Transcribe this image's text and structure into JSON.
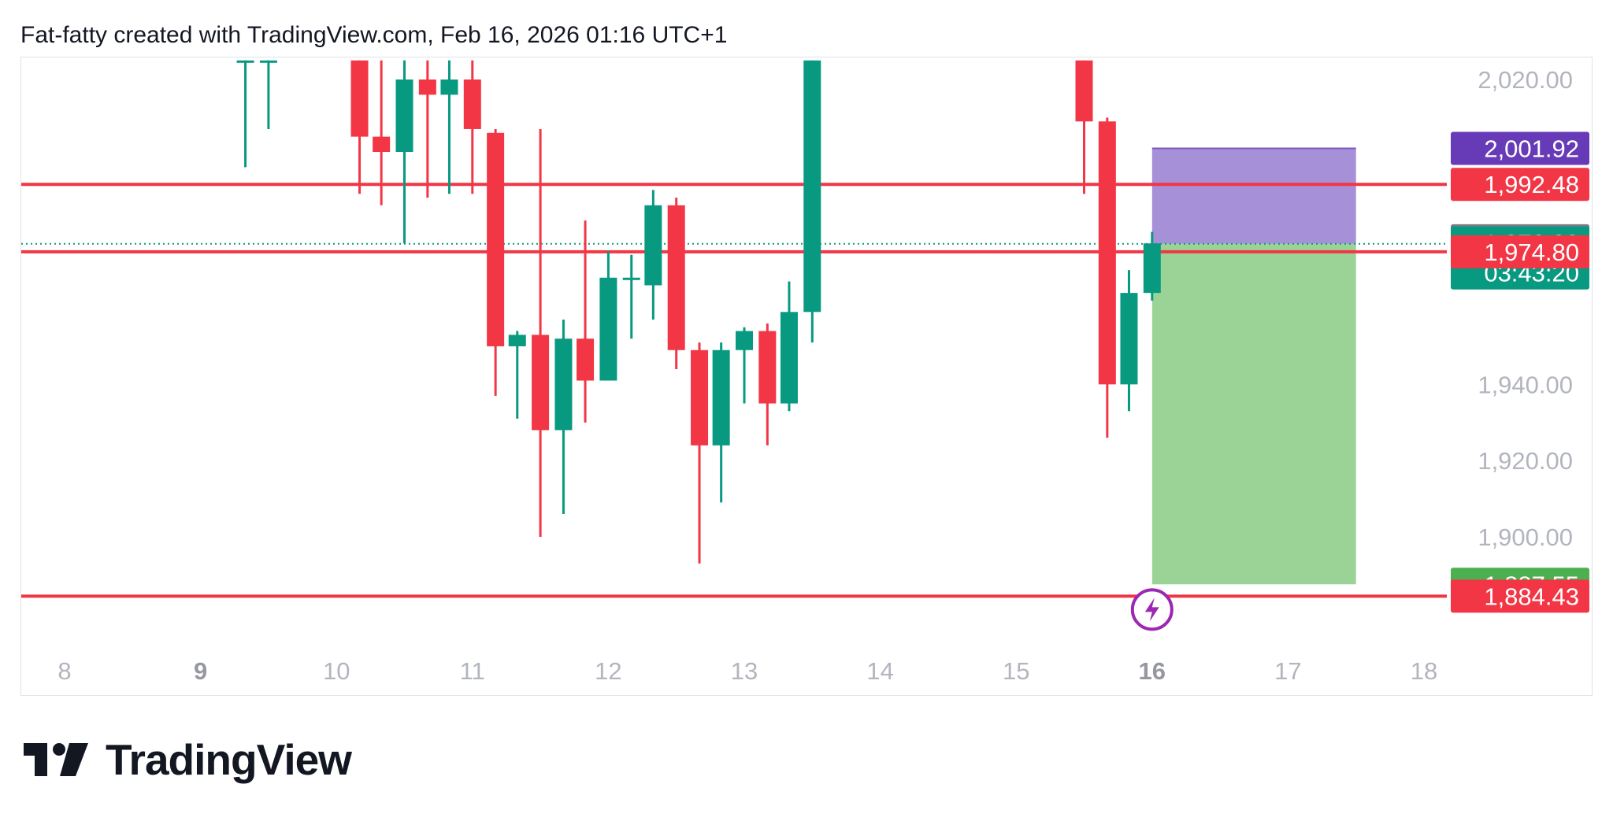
{
  "header": {
    "caption": "Fat-fatty created with TradingView.com, Feb 16, 2026 01:16 UTC+1"
  },
  "brand": {
    "name": "TradingView"
  },
  "colors": {
    "bull": "#089981",
    "bear": "#f23645",
    "level_line": "#f23645",
    "stop_zone": "#a18ad6",
    "target_zone": "#96d190",
    "last_price": "#089981",
    "stop_label": "#673ab7",
    "crosshair_label": "#787b86",
    "target_label": "#4caf50",
    "axis_text": "#b2b5be"
  },
  "chart_data": {
    "type": "candlestick",
    "y_range": [
      1880,
      2025
    ],
    "y_ticks": [
      "2,020.00",
      "1,940.00",
      "1,920.00",
      "1,900.00"
    ],
    "x_ticks": [
      {
        "label": "8",
        "x": 8,
        "bold": false
      },
      {
        "label": "9",
        "x": 9,
        "bold": true
      },
      {
        "label": "10",
        "x": 10,
        "bold": false
      },
      {
        "label": "11",
        "x": 11,
        "bold": false
      },
      {
        "label": "12",
        "x": 12,
        "bold": false
      },
      {
        "label": "13",
        "x": 13,
        "bold": false
      },
      {
        "label": "14",
        "x": 14,
        "bold": false
      },
      {
        "label": "15",
        "x": 15,
        "bold": false
      },
      {
        "label": "16",
        "x": 16,
        "bold": true
      },
      {
        "label": "17",
        "x": 17,
        "bold": false
      },
      {
        "label": "18",
        "x": 18,
        "bold": false
      }
    ],
    "candles": [
      {
        "x": 9.33,
        "open": 2025,
        "high": 2025,
        "low": 1997,
        "close": 2025
      },
      {
        "x": 9.5,
        "open": 2025,
        "high": 2025,
        "low": 2007,
        "close": 2025
      },
      {
        "x": 10.17,
        "open": 2025,
        "high": 2025,
        "low": 1990,
        "close": 2005
      },
      {
        "x": 10.33,
        "open": 2005,
        "high": 2025,
        "low": 1987,
        "close": 2001
      },
      {
        "x": 10.5,
        "open": 2001,
        "high": 2025,
        "low": 1977,
        "close": 2020
      },
      {
        "x": 10.67,
        "open": 2020,
        "high": 2025,
        "low": 1989,
        "close": 2016
      },
      {
        "x": 10.83,
        "open": 2016,
        "high": 2025,
        "low": 1990,
        "close": 2020
      },
      {
        "x": 11.0,
        "open": 2020,
        "high": 2025,
        "low": 1990,
        "close": 2007
      },
      {
        "x": 11.17,
        "open": 2006,
        "high": 2007,
        "low": 1937,
        "close": 1950
      },
      {
        "x": 11.33,
        "open": 1950,
        "high": 1954,
        "low": 1931,
        "close": 1953
      },
      {
        "x": 11.5,
        "open": 1953,
        "high": 2007,
        "low": 1900,
        "close": 1928
      },
      {
        "x": 11.67,
        "open": 1928,
        "high": 1957,
        "low": 1906,
        "close": 1952
      },
      {
        "x": 11.83,
        "open": 1952,
        "high": 1983,
        "low": 1930,
        "close": 1941
      },
      {
        "x": 12.0,
        "open": 1941,
        "high": 1975,
        "low": 1941,
        "close": 1968
      },
      {
        "x": 12.17,
        "open": 1968,
        "high": 1974,
        "low": 1952,
        "close": 1968
      },
      {
        "x": 12.33,
        "open": 1966,
        "high": 1991,
        "low": 1957,
        "close": 1987
      },
      {
        "x": 12.5,
        "open": 1987,
        "high": 1989,
        "low": 1944,
        "close": 1949
      },
      {
        "x": 12.67,
        "open": 1949,
        "high": 1951,
        "low": 1893,
        "close": 1924
      },
      {
        "x": 12.83,
        "open": 1924,
        "high": 1951,
        "low": 1909,
        "close": 1949
      },
      {
        "x": 13.0,
        "open": 1949,
        "high": 1955,
        "low": 1935,
        "close": 1954
      },
      {
        "x": 13.17,
        "open": 1954,
        "high": 1956,
        "low": 1924,
        "close": 1935
      },
      {
        "x": 13.33,
        "open": 1935,
        "high": 1967,
        "low": 1933,
        "close": 1959
      },
      {
        "x": 13.5,
        "open": 1959,
        "high": 2025,
        "low": 1951,
        "close": 2025
      },
      {
        "x": 15.5,
        "open": 2025,
        "high": 2025,
        "low": 1990,
        "close": 2009
      },
      {
        "x": 15.67,
        "open": 2009,
        "high": 2010,
        "low": 1926,
        "close": 1940
      },
      {
        "x": 15.83,
        "open": 1940,
        "high": 1970,
        "low": 1933,
        "close": 1964
      },
      {
        "x": 16.0,
        "open": 1964,
        "high": 1980,
        "low": 1962,
        "close": 1977
      }
    ],
    "levels": [
      {
        "name": "upper-level",
        "price": 1992.48
      },
      {
        "name": "middle-level",
        "price": 1974.8
      },
      {
        "name": "lower-level",
        "price": 1884.43
      }
    ],
    "last_price_line": 1976.89,
    "position": {
      "type": "short",
      "x_start": 16.0,
      "x_end": 17.5,
      "entry": 1976.89,
      "stop": 2001.92,
      "target": 1887.55
    },
    "price_labels": [
      {
        "name": "stop-price-label",
        "text": "2,001.92",
        "price": 2001.92,
        "color_key": "stop_label"
      },
      {
        "name": "upper-level-label",
        "text": "1,992.48",
        "price": 1992.48,
        "color_key": "bear"
      },
      {
        "name": "crosshair-price-label",
        "text": "1,977.68",
        "price": 1977.68,
        "color_key": "crosshair_label"
      },
      {
        "name": "last-price-label",
        "text": "1,976.89",
        "sub": "03:43:20",
        "price": 1976.89,
        "color_key": "last_price"
      },
      {
        "name": "middle-level-label",
        "text": "1,974.80",
        "price": 1974.8,
        "color_key": "bear"
      },
      {
        "name": "target-price-label",
        "text": "1,887.55",
        "price": 1887.55,
        "color_key": "target_label"
      },
      {
        "name": "lower-level-label",
        "text": "1,884.43",
        "price": 1884.43,
        "color_key": "bear"
      }
    ]
  }
}
